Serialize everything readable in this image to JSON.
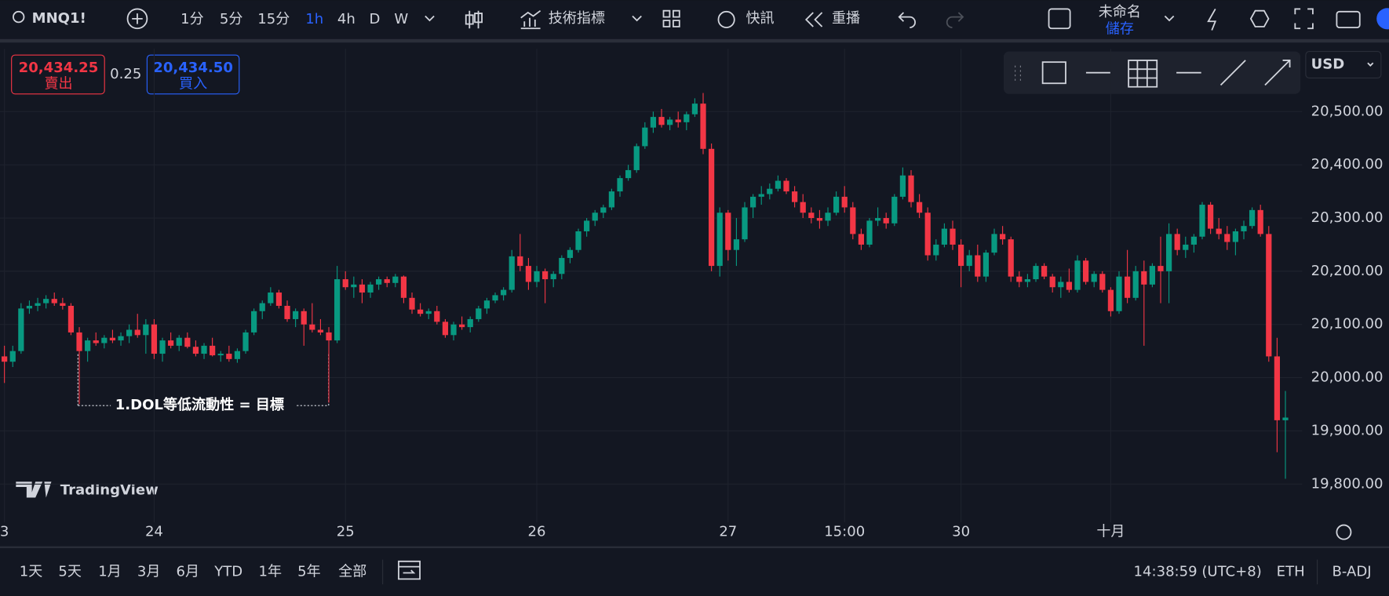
{
  "toolbar": {
    "symbol": "MNQ1!",
    "intervals": [
      "1分",
      "5分",
      "15分",
      "1h",
      "4h",
      "D",
      "W"
    ],
    "indicators": "技術指標",
    "alert": "快訊",
    "replay": "重播",
    "layout_name": "未命名",
    "save": "儲存"
  },
  "trade": {
    "sell_price": "20,434.25",
    "sell_label": "賣出",
    "spread": "0.25",
    "buy_price": "20,434.50",
    "buy_label": "買入"
  },
  "currency": "USD",
  "chart_data": {
    "type": "candlestick",
    "annotation": "1.DOL等低流動性 = 目標",
    "watermark": "TradingView",
    "grid": true,
    "up_color": "#089981",
    "down_color": "#f23645",
    "ylim": [
      19728,
      20618
    ],
    "yticks": [
      {
        "value": 19800,
        "label": "19,800.00"
      },
      {
        "value": 19900,
        "label": "19,900.00"
      },
      {
        "value": 20000,
        "label": "20,000.00"
      },
      {
        "value": 20100,
        "label": "20,100.00"
      },
      {
        "value": 20200,
        "label": "20,200.00"
      },
      {
        "value": 20300,
        "label": "20,300.00"
      },
      {
        "value": 20400,
        "label": "20,400.00"
      },
      {
        "value": 20500,
        "label": "20,500.00"
      }
    ],
    "categories": [
      "3",
      null,
      null,
      null,
      null,
      null,
      null,
      null,
      null,
      null,
      null,
      null,
      null,
      null,
      null,
      null,
      null,
      null,
      "24",
      null,
      null,
      null,
      null,
      null,
      null,
      null,
      null,
      null,
      null,
      null,
      null,
      null,
      null,
      null,
      null,
      null,
      null,
      null,
      null,
      null,
      null,
      "25",
      null,
      null,
      null,
      null,
      null,
      null,
      null,
      null,
      null,
      null,
      null,
      null,
      null,
      null,
      null,
      null,
      null,
      null,
      null,
      null,
      null,
      null,
      "26",
      null,
      null,
      null,
      null,
      null,
      null,
      null,
      null,
      null,
      null,
      null,
      null,
      null,
      null,
      null,
      null,
      null,
      null,
      null,
      null,
      null,
      null,
      "27",
      null,
      null,
      null,
      null,
      null,
      null,
      null,
      null,
      null,
      null,
      null,
      null,
      null,
      "15:00",
      null,
      null,
      null,
      null,
      null,
      null,
      null,
      null,
      null,
      null,
      null,
      null,
      null,
      "30",
      null,
      null,
      null,
      null,
      null,
      null,
      null,
      null,
      null,
      null,
      null,
      null,
      null,
      null,
      null,
      null,
      null,
      "十月",
      null,
      null,
      null,
      null,
      null,
      null,
      null,
      null,
      null,
      null,
      null,
      null,
      null,
      null,
      null,
      null,
      null,
      null,
      null,
      null,
      null
    ],
    "candles": [
      [
        20040,
        20060,
        19990,
        20030
      ],
      [
        20030,
        20060,
        20020,
        20050
      ],
      [
        20050,
        20140,
        20045,
        20130
      ],
      [
        20130,
        20145,
        20120,
        20135
      ],
      [
        20135,
        20150,
        20125,
        20140
      ],
      [
        20140,
        20155,
        20130,
        20148
      ],
      [
        20148,
        20160,
        20135,
        20140
      ],
      [
        20140,
        20150,
        20128,
        20135
      ],
      [
        20135,
        20140,
        20080,
        20085
      ],
      [
        20085,
        20095,
        19950,
        20050
      ],
      [
        20050,
        20075,
        20030,
        20070
      ],
      [
        20070,
        20085,
        20060,
        20065
      ],
      [
        20065,
        20080,
        20055,
        20075
      ],
      [
        20075,
        20090,
        20065,
        20070
      ],
      [
        20070,
        20085,
        20060,
        20078
      ],
      [
        20078,
        20100,
        20065,
        20090
      ],
      [
        20090,
        20120,
        20075,
        20080
      ],
      [
        20080,
        20110,
        20045,
        20100
      ],
      [
        20100,
        20110,
        20035,
        20045
      ],
      [
        20045,
        20075,
        20030,
        20070
      ],
      [
        20070,
        20085,
        20055,
        20060
      ],
      [
        20060,
        20080,
        20050,
        20075
      ],
      [
        20075,
        20085,
        20055,
        20058
      ],
      [
        20058,
        20070,
        20040,
        20045
      ],
      [
        20045,
        20065,
        20035,
        20060
      ],
      [
        20060,
        20075,
        20040,
        20042
      ],
      [
        20042,
        20050,
        20030,
        20045
      ],
      [
        20045,
        20060,
        20030,
        20035
      ],
      [
        20035,
        20055,
        20028,
        20050
      ],
      [
        20050,
        20090,
        20045,
        20085
      ],
      [
        20085,
        20130,
        20080,
        20125
      ],
      [
        20125,
        20145,
        20110,
        20140
      ],
      [
        20140,
        20170,
        20135,
        20160
      ],
      [
        20160,
        20165,
        20130,
        20135
      ],
      [
        20135,
        20145,
        20105,
        20110
      ],
      [
        20110,
        20130,
        20095,
        20125
      ],
      [
        20125,
        20130,
        20060,
        20100
      ],
      [
        20100,
        20140,
        20085,
        20090
      ],
      [
        20090,
        20110,
        20080,
        20085
      ],
      [
        20085,
        20095,
        19953,
        20070
      ],
      [
        20070,
        20210,
        20065,
        20185
      ],
      [
        20185,
        20200,
        20165,
        20170
      ],
      [
        20170,
        20190,
        20150,
        20175
      ],
      [
        20175,
        20185,
        20140,
        20160
      ],
      [
        20160,
        20180,
        20150,
        20175
      ],
      [
        20175,
        20190,
        20165,
        20185
      ],
      [
        20185,
        20190,
        20170,
        20178
      ],
      [
        20178,
        20195,
        20170,
        20190
      ],
      [
        20190,
        20192,
        20140,
        20150
      ],
      [
        20150,
        20160,
        20120,
        20128
      ],
      [
        20128,
        20140,
        20115,
        20120
      ],
      [
        20120,
        20130,
        20110,
        20125
      ],
      [
        20125,
        20135,
        20100,
        20105
      ],
      [
        20105,
        20110,
        20075,
        20080
      ],
      [
        20080,
        20105,
        20070,
        20100
      ],
      [
        20100,
        20115,
        20090,
        20095
      ],
      [
        20095,
        20115,
        20085,
        20110
      ],
      [
        20110,
        20135,
        20105,
        20130
      ],
      [
        20130,
        20150,
        20120,
        20145
      ],
      [
        20145,
        20160,
        20140,
        20155
      ],
      [
        20155,
        20170,
        20145,
        20165
      ],
      [
        20165,
        20240,
        20160,
        20228
      ],
      [
        20228,
        20270,
        20200,
        20210
      ],
      [
        20210,
        20225,
        20165,
        20180
      ],
      [
        20180,
        20210,
        20170,
        20200
      ],
      [
        20200,
        20205,
        20140,
        20185
      ],
      [
        20185,
        20200,
        20170,
        20195
      ],
      [
        20195,
        20230,
        20185,
        20225
      ],
      [
        20225,
        20245,
        20215,
        20240
      ],
      [
        20240,
        20280,
        20235,
        20275
      ],
      [
        20275,
        20300,
        20265,
        20295
      ],
      [
        20295,
        20315,
        20285,
        20310
      ],
      [
        20310,
        20325,
        20300,
        20320
      ],
      [
        20320,
        20355,
        20315,
        20350
      ],
      [
        20350,
        20380,
        20340,
        20375
      ],
      [
        20375,
        20400,
        20370,
        20390
      ],
      [
        20390,
        20440,
        20385,
        20435
      ],
      [
        20435,
        20480,
        20430,
        20470
      ],
      [
        20470,
        20500,
        20460,
        20490
      ],
      [
        20490,
        20505,
        20470,
        20475
      ],
      [
        20475,
        20490,
        20465,
        20485
      ],
      [
        20485,
        20500,
        20470,
        20480
      ],
      [
        20480,
        20500,
        20465,
        20495
      ],
      [
        20495,
        20525,
        20490,
        20515
      ],
      [
        20515,
        20535,
        20420,
        20430
      ],
      [
        20430,
        20440,
        20200,
        20210
      ],
      [
        20210,
        20320,
        20190,
        20310
      ],
      [
        20310,
        20315,
        20220,
        20240
      ],
      [
        20240,
        20300,
        20210,
        20260
      ],
      [
        20260,
        20330,
        20255,
        20320
      ],
      [
        20320,
        20345,
        20300,
        20340
      ],
      [
        20340,
        20360,
        20325,
        20345
      ],
      [
        20345,
        20365,
        20335,
        20355
      ],
      [
        20355,
        20380,
        20350,
        20370
      ],
      [
        20370,
        20375,
        20345,
        20350
      ],
      [
        20350,
        20360,
        20320,
        20330
      ],
      [
        20330,
        20345,
        20300,
        20310
      ],
      [
        20310,
        20320,
        20290,
        20300
      ],
      [
        20300,
        20315,
        20280,
        20295
      ],
      [
        20295,
        20320,
        20285,
        20310
      ],
      [
        20310,
        20350,
        20305,
        20340
      ],
      [
        20340,
        20360,
        20310,
        20320
      ],
      [
        20320,
        20330,
        20260,
        20270
      ],
      [
        20270,
        20280,
        20240,
        20250
      ],
      [
        20250,
        20300,
        20245,
        20295
      ],
      [
        20295,
        20320,
        20285,
        20300
      ],
      [
        20300,
        20310,
        20280,
        20290
      ],
      [
        20290,
        20345,
        20285,
        20340
      ],
      [
        20340,
        20395,
        20335,
        20380
      ],
      [
        20380,
        20390,
        20320,
        20330
      ],
      [
        20330,
        20345,
        20300,
        20310
      ],
      [
        20310,
        20320,
        20220,
        20230
      ],
      [
        20230,
        20260,
        20220,
        20250
      ],
      [
        20250,
        20290,
        20245,
        20280
      ],
      [
        20280,
        20295,
        20240,
        20250
      ],
      [
        20250,
        20260,
        20170,
        20210
      ],
      [
        20210,
        20240,
        20200,
        20230
      ],
      [
        20230,
        20250,
        20180,
        20190
      ],
      [
        20190,
        20240,
        20180,
        20235
      ],
      [
        20235,
        20280,
        20230,
        20270
      ],
      [
        20270,
        20285,
        20250,
        20260
      ],
      [
        20260,
        20265,
        20180,
        20190
      ],
      [
        20190,
        20200,
        20170,
        20180
      ],
      [
        20180,
        20195,
        20170,
        20185
      ],
      [
        20185,
        20215,
        20180,
        20210
      ],
      [
        20210,
        20215,
        20185,
        20190
      ],
      [
        20190,
        20195,
        20160,
        20170
      ],
      [
        20170,
        20190,
        20150,
        20180
      ],
      [
        20180,
        20205,
        20160,
        20165
      ],
      [
        20165,
        20230,
        20160,
        20220
      ],
      [
        20220,
        20225,
        20175,
        20180
      ],
      [
        20180,
        20200,
        20170,
        20195
      ],
      [
        20195,
        20200,
        20160,
        20165
      ],
      [
        20165,
        20170,
        20115,
        20125
      ],
      [
        20125,
        20200,
        20120,
        20190
      ],
      [
        20190,
        20240,
        20140,
        20150
      ],
      [
        20150,
        20210,
        20145,
        20200
      ],
      [
        20200,
        20220,
        20060,
        20175
      ],
      [
        20175,
        20215,
        20170,
        20210
      ],
      [
        20210,
        20265,
        20140,
        20200
      ],
      [
        20200,
        20290,
        20140,
        20270
      ],
      [
        20270,
        20280,
        20230,
        20240
      ],
      [
        20240,
        20265,
        20225,
        20250
      ],
      [
        20250,
        20270,
        20235,
        20265
      ],
      [
        20265,
        20330,
        20260,
        20325
      ],
      [
        20325,
        20330,
        20270,
        20280
      ],
      [
        20280,
        20300,
        20260,
        20270
      ],
      [
        20270,
        20285,
        20240,
        20255
      ],
      [
        20255,
        20280,
        20230,
        20275
      ],
      [
        20275,
        20295,
        20260,
        20285
      ],
      [
        20285,
        20320,
        20280,
        20315
      ],
      [
        20315,
        20325,
        20265,
        20270
      ],
      [
        20270,
        20285,
        20030,
        20040
      ],
      [
        20040,
        20075,
        19860,
        19920
      ],
      [
        19920,
        19975,
        19810,
        19925
      ]
    ]
  },
  "bottom_bar": {
    "ranges": [
      "1天",
      "5天",
      "1月",
      "3月",
      "6月",
      "YTD",
      "1年",
      "5年",
      "全部"
    ],
    "clock": "14:38:59 (UTC+8)",
    "session": "ETH",
    "adjustment": "B-ADJ"
  }
}
